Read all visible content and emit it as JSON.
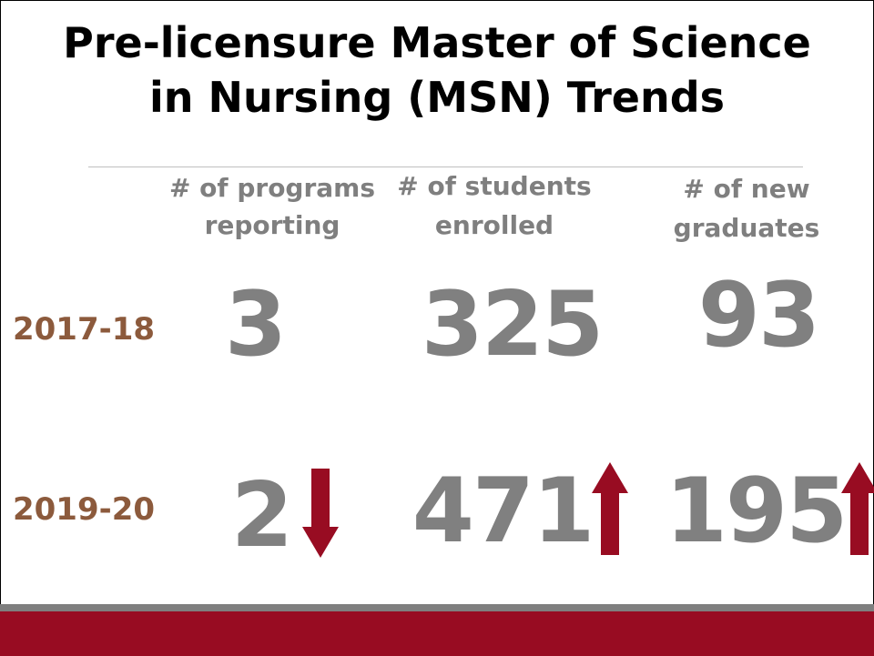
{
  "title": [
    "Pre-licensure Master of Science",
    "in Nursing (MSN) Trends"
  ],
  "columns": [
    [
      "# of programs",
      "reporting"
    ],
    [
      "# of students",
      "enrolled"
    ],
    [
      "# of new",
      "graduates"
    ]
  ],
  "rows": [
    {
      "year": "2017-18",
      "values": [
        "3",
        "325",
        "93"
      ]
    },
    {
      "year": "2019-20",
      "values": [
        "2",
        "471",
        "195"
      ],
      "trends": [
        "down",
        "up",
        "up"
      ]
    }
  ]
}
